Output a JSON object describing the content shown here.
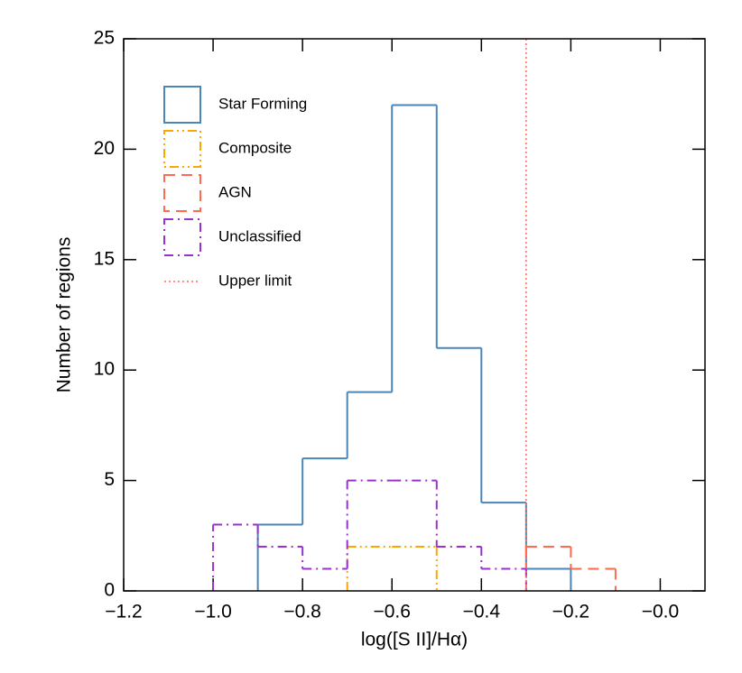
{
  "chart_data": {
    "type": "histogram",
    "x_label": "log([S II]/Hα)",
    "y_label": "Number of regions",
    "xlim": [
      -1.2,
      0.1
    ],
    "ylim": [
      0,
      25
    ],
    "xticks": [
      {
        "value": -1.2,
        "label": "−1.2"
      },
      {
        "value": -1.0,
        "label": "−1.0"
      },
      {
        "value": -0.8,
        "label": "−0.8"
      },
      {
        "value": -0.6,
        "label": "−0.6"
      },
      {
        "value": -0.4,
        "label": "−0.4"
      },
      {
        "value": -0.2,
        "label": "−0.2"
      },
      {
        "value": 0,
        "label": "−0.0"
      }
    ],
    "yticks": [
      0,
      5,
      10,
      15,
      20,
      25
    ],
    "legend": "upper left",
    "series": [
      {
        "name": "Star Forming",
        "color": "#4a86b8",
        "dash": "solid",
        "bins": [
          -0.9,
          -0.8,
          -0.7,
          -0.6,
          -0.5,
          -0.4,
          -0.3,
          -0.2
        ],
        "values": [
          3,
          6,
          9,
          22,
          11,
          4,
          1
        ]
      },
      {
        "name": "Composite",
        "color": "#ffa500",
        "dash": "dash-dot-dot",
        "bins": [
          -0.7,
          -0.6,
          -0.5
        ],
        "values": [
          2,
          2
        ]
      },
      {
        "name": "AGN",
        "color": "#ff6a50",
        "dash": "dash",
        "bins": [
          -0.3,
          -0.2,
          -0.1
        ],
        "values": [
          2,
          1
        ]
      },
      {
        "name": "Unclassified",
        "color": "#9b30d0",
        "dash": "dash-dot",
        "bins": [
          -1.0,
          -0.9,
          -0.8,
          -0.7,
          -0.6,
          -0.5,
          -0.4,
          -0.3
        ],
        "values": [
          3,
          2,
          1,
          5,
          5,
          2,
          1
        ]
      }
    ],
    "reference_lines": [
      {
        "name": "Upper limit",
        "x": -0.3,
        "color": "#ff6a5a",
        "dash": "dot"
      }
    ]
  }
}
